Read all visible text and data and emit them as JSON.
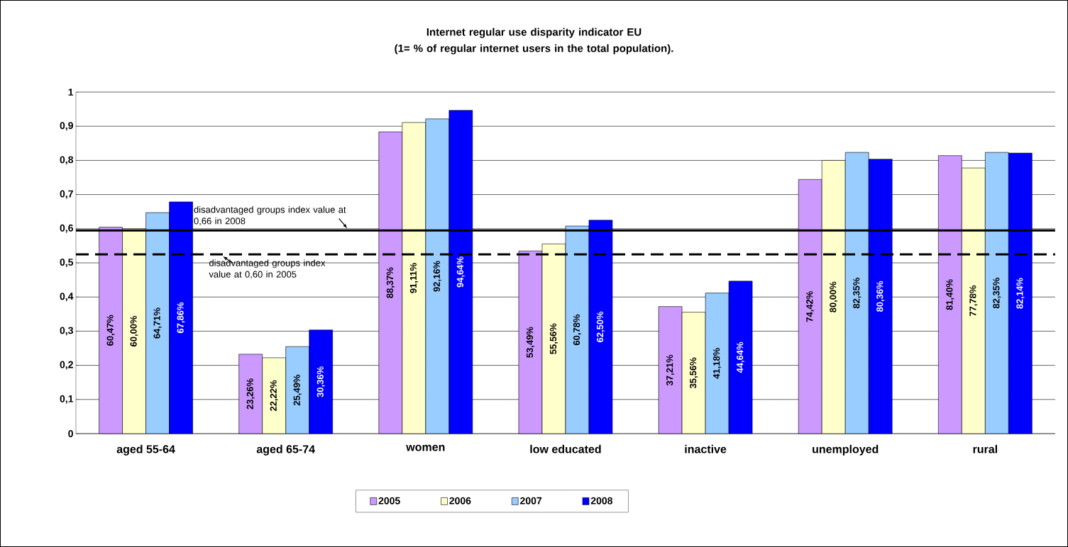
{
  "chart_data": {
    "type": "bar",
    "title": "Internet regular use disparity indicator EU\n(1= % of regular internet users in the total population).",
    "categories": [
      "aged 55-64",
      "aged 65-74",
      "women",
      "low educated",
      "inactive",
      "unemployed",
      "rural"
    ],
    "series": [
      {
        "name": "2005",
        "color": "#cc99ff",
        "values": [
          0.6047,
          0.2326,
          0.8837,
          0.5349,
          0.3721,
          0.7442,
          0.814
        ],
        "value_labels": [
          "60,47%",
          "23,26%",
          "88,37%",
          "53,49%",
          "37,21%",
          "74,42%",
          "81,40%"
        ]
      },
      {
        "name": "2006",
        "color": "#ffffcc",
        "values": [
          0.6,
          0.2222,
          0.9111,
          0.5556,
          0.3556,
          0.8,
          0.7778
        ],
        "value_labels": [
          "60,00%",
          "22,22%",
          "91,11%",
          "55,56%",
          "35,56%",
          "80,00%",
          "77,78%"
        ]
      },
      {
        "name": "2007",
        "color": "#99ccff",
        "values": [
          0.6471,
          0.2549,
          0.9216,
          0.6078,
          0.4118,
          0.8235,
          0.8235
        ],
        "value_labels": [
          "64,71%",
          "25,49%",
          "92,16%",
          "60,78%",
          "41,18%",
          "82,35%",
          "82,35%"
        ]
      },
      {
        "name": "2008",
        "color": "#0000ff",
        "values": [
          0.6786,
          0.3036,
          0.9464,
          0.625,
          0.4464,
          0.8036,
          0.8214
        ],
        "value_labels": [
          "67,86%",
          "30,36%",
          "94,64%",
          "62,50%",
          "44,64%",
          "80,36%",
          "82,14%"
        ]
      }
    ],
    "ylim": [
      0,
      1
    ],
    "yticks": [
      0,
      {
        "value": 0.1,
        "label": "0,1"
      },
      {
        "value": 0.2,
        "label": "0,2"
      },
      {
        "value": 0.3,
        "label": "0,3"
      },
      {
        "value": 0.4,
        "label": "0,4"
      },
      {
        "value": 0.5,
        "label": "0,5"
      },
      {
        "value": 0.6,
        "label": "0,6"
      },
      {
        "value": 0.7,
        "label": "0,7"
      },
      {
        "value": 0.8,
        "label": "0,8"
      },
      {
        "value": 0.9,
        "label": "0,9"
      },
      1
    ],
    "ref_lines": [
      {
        "axis": "y",
        "value": 0.595,
        "label": "disadvantaged groups index value at 0,66 in 2008",
        "color": "#000000",
        "line_style": "solid"
      },
      {
        "axis": "y",
        "value": 0.525,
        "label": "disadvantaged groups index value at 0,60 in 2005",
        "color": "#000000",
        "line_style": "dashed"
      }
    ],
    "grid": "y",
    "legend": "bottom"
  }
}
